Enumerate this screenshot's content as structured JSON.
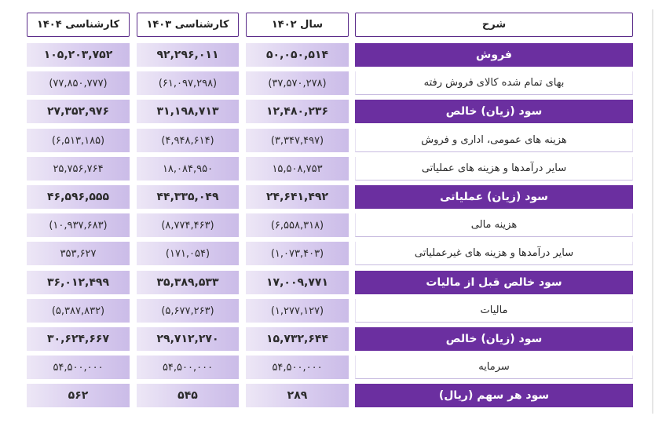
{
  "headers": {
    "desc": "شرح",
    "y1402": "سال ۱۴۰۲",
    "y1403": "کارشناسی ۱۴۰۳",
    "y1404": "کارشناسی ۱۴۰۴"
  },
  "rows": [
    {
      "label": "فروش",
      "v1402": "۵۰,۰۵۰,۵۱۴",
      "v1403": "۹۲,۲۹۶,۰۱۱",
      "v1404": "۱۰۵,۲۰۳,۷۵۲",
      "main": true
    },
    {
      "label": "بهای تمام شده کالای فروش رفته",
      "v1402": "(۳۷,۵۷۰,۲۷۸)",
      "v1403": "(۶۱,۰۹۷,۲۹۸)",
      "v1404": "(۷۷,۸۵۰,۷۷۷)",
      "main": false
    },
    {
      "label": "سود (زیان) خالص",
      "v1402": "۱۲,۴۸۰,۲۳۶",
      "v1403": "۳۱,۱۹۸,۷۱۳",
      "v1404": "۲۷,۳۵۲,۹۷۶",
      "main": true
    },
    {
      "label": "هزینه های عمومی، اداری و فروش",
      "v1402": "(۳,۳۴۷,۴۹۷)",
      "v1403": "(۴,۹۴۸,۶۱۴)",
      "v1404": "(۶,۵۱۳,۱۸۵)",
      "main": false
    },
    {
      "label": "سایر درآمدها و هزینه های عملیاتی",
      "v1402": "۱۵,۵۰۸,۷۵۳",
      "v1403": "۱۸,۰۸۴,۹۵۰",
      "v1404": "۲۵,۷۵۶,۷۶۴",
      "main": false
    },
    {
      "label": "سود (زیان) عملیاتی",
      "v1402": "۲۴,۶۴۱,۴۹۲",
      "v1403": "۴۴,۳۳۵,۰۴۹",
      "v1404": "۴۶,۵۹۶,۵۵۵",
      "main": true
    },
    {
      "label": "هزینه مالی",
      "v1402": "(۶,۵۵۸,۳۱۸)",
      "v1403": "(۸,۷۷۴,۴۶۳)",
      "v1404": "(۱۰,۹۳۷,۶۸۳)",
      "main": false
    },
    {
      "label": "سایر درآمدها و هزینه های غیرعملیاتی",
      "v1402": "(۱,۰۷۳,۴۰۳)",
      "v1403": "(۱۷۱,۰۵۴)",
      "v1404": "۳۵۳,۶۲۷",
      "main": false
    },
    {
      "label": "سود خالص قبل از مالیات",
      "v1402": "۱۷,۰۰۹,۷۷۱",
      "v1403": "۳۵,۳۸۹,۵۳۳",
      "v1404": "۳۶,۰۱۲,۴۹۹",
      "main": true
    },
    {
      "label": "مالیات",
      "v1402": "(۱,۲۷۷,۱۲۷)",
      "v1403": "(۵,۶۷۷,۲۶۳)",
      "v1404": "(۵,۳۸۷,۸۳۲)",
      "main": false
    },
    {
      "label": "سود (زیان) خالص",
      "v1402": "۱۵,۷۳۲,۶۴۴",
      "v1403": "۲۹,۷۱۲,۲۷۰",
      "v1404": "۳۰,۶۲۴,۶۶۷",
      "main": true
    },
    {
      "label": "سرمایه",
      "v1402": "۵۴,۵۰۰,۰۰۰",
      "v1403": "۵۴,۵۰۰,۰۰۰",
      "v1404": "۵۴,۵۰۰,۰۰۰",
      "main": false
    },
    {
      "label": "سود هر سهم (ریال)",
      "v1402": "۲۸۹",
      "v1403": "۵۴۵",
      "v1404": "۵۶۲",
      "main": true
    }
  ],
  "colors": {
    "accent": "#6b2fa0",
    "header_border": "#5b2c8a",
    "value_bg_light": "#ede7f6",
    "value_bg_dark": "#cbbce8"
  }
}
